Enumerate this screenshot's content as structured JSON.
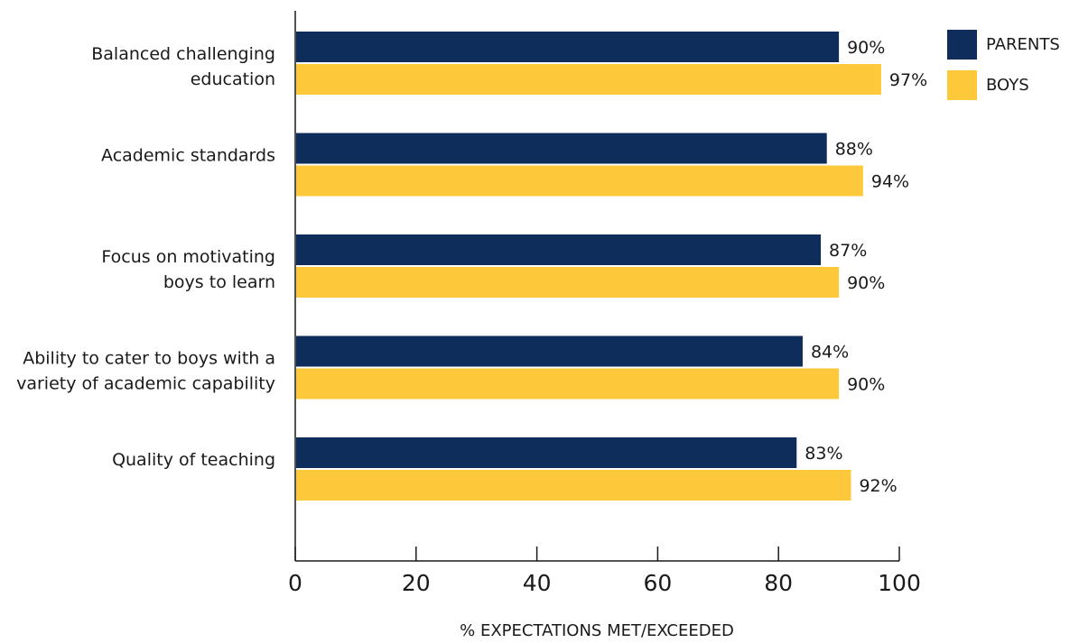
{
  "chart_data": {
    "type": "bar",
    "orientation": "horizontal",
    "categories": [
      [
        "Balanced challenging",
        "education"
      ],
      [
        "Academic standards"
      ],
      [
        "Focus on motivating",
        "boys to learn"
      ],
      [
        "Ability to cater to boys with a",
        "variety of academic capability"
      ],
      [
        "Quality of teaching"
      ]
    ],
    "series": [
      {
        "name": "PARENTS",
        "color": "#0e2d5a",
        "values": [
          90,
          88,
          87,
          84,
          83
        ],
        "labels": [
          "90%",
          "88%",
          "87%",
          "84%",
          "83%"
        ]
      },
      {
        "name": "BOYS",
        "color": "#fdc93b",
        "values": [
          97,
          94,
          90,
          90,
          92
        ],
        "labels": [
          "97%",
          "94%",
          "90%",
          "90%",
          "92%"
        ]
      }
    ],
    "xlim": [
      0,
      100
    ],
    "xticks": [
      0,
      20,
      40,
      60,
      80,
      100
    ],
    "xtick_labels": [
      "0",
      "20",
      "40",
      "60",
      "80",
      "100"
    ],
    "xlabel": "% EXPECTATIONS MET/EXCEEDED",
    "ylabel": "",
    "title": "",
    "grid": false,
    "legend_position": "top-right"
  }
}
